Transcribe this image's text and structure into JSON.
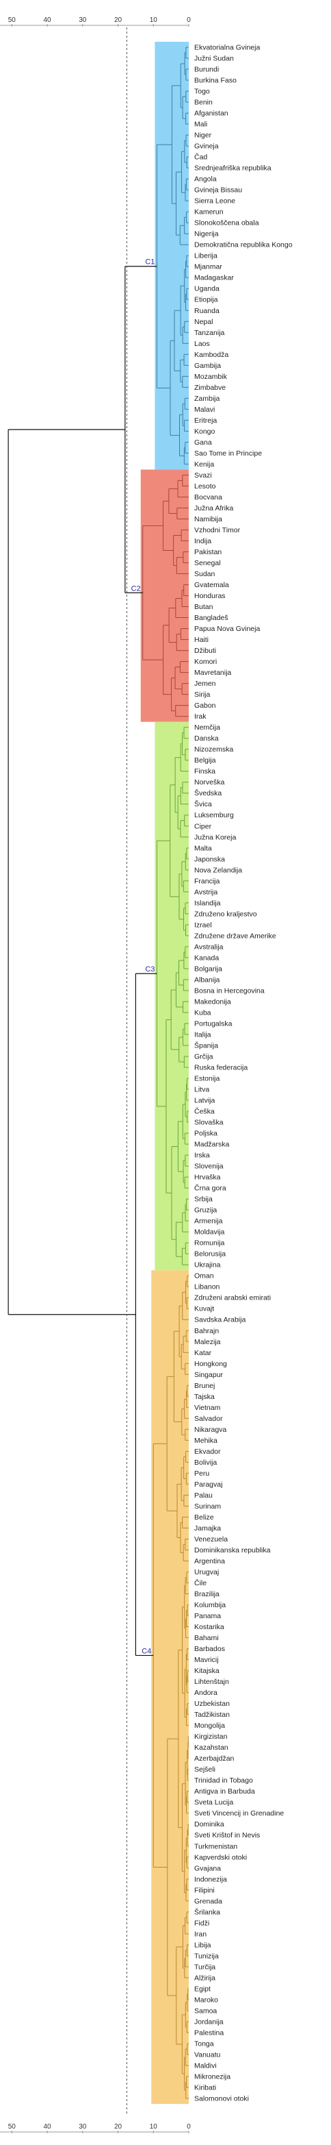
{
  "chart_data": {
    "type": "dendrogram",
    "orientation": "horizontal",
    "title": "",
    "xlabel": "",
    "ylabel": "",
    "xlim": [
      55,
      0
    ],
    "axis_ticks": [
      50,
      40,
      30,
      20,
      10,
      0
    ],
    "cut_line": 17.5,
    "root_height": 51,
    "clusters": [
      {
        "label": "C1",
        "color": "#8fd4f6",
        "stroke": "#3b7fa6",
        "sub_height": 9,
        "leaves": [
          "Ekvatorialna Gvineja",
          "Južni Sudan",
          "Burundi",
          "Burkina Faso",
          "Togo",
          "Benin",
          "Afganistan",
          "Mali",
          "Niger",
          "Gvineja",
          "Čad",
          "Srednjeafriška republika",
          "Angola",
          "Gvineja Bissau",
          "Sierra Leone",
          "Kamerun",
          "Slonokoščena obala",
          "Nigerija",
          "Demokratična republika Kongo",
          "Liberija",
          "Mjanmar",
          "Madagaskar",
          "Uganda",
          "Etiopija",
          "Ruanda",
          "Nepal",
          "Tanzanija",
          "Laos",
          "Kambodža",
          "Gambija",
          "Mozambik",
          "Zimbabve",
          "Zambija",
          "Malavi",
          "Eritreja",
          "Kongo",
          "Gana",
          "Sao Tome in Principe",
          "Kenija"
        ]
      },
      {
        "label": "C2",
        "color": "#ef8a7b",
        "stroke": "#a8453a",
        "sub_height": 13,
        "leaves": [
          "Svazi",
          "Lesoto",
          "Bocvana",
          "Južna Afrika",
          "Namibija",
          "Vzhodni Timor",
          "Indija",
          "Pakistan",
          "Senegal",
          "Sudan",
          "Gvatemala",
          "Honduras",
          "Butan",
          "Bangladeš",
          "Papua Nova Gvineja",
          "Haiti",
          "Džibuti",
          "Komori",
          "Mavretanija",
          "Jemen",
          "Sirija",
          "Gabon",
          "Irak"
        ]
      },
      {
        "label": "C3",
        "color": "#c8ef8a",
        "stroke": "#6fa43a",
        "sub_height": 9,
        "leaves": [
          "Nemčija",
          "Danska",
          "Nizozemska",
          "Belgija",
          "Finska",
          "Norveška",
          "Švedska",
          "Švica",
          "Luksemburg",
          "Ciper",
          "Južna Koreja",
          "Malta",
          "Japonska",
          "Nova Zelandija",
          "Francija",
          "Avstrija",
          "Islandija",
          "Združeno kraljestvo",
          "Izrael",
          "Združene države Amerike",
          "Avstralija",
          "Kanada",
          "Bolgarija",
          "Albanija",
          "Bosna in Hercegovina",
          "Makedonija",
          "Kuba",
          "Portugalska",
          "Italija",
          "Španija",
          "Grčija",
          "Ruska federacija",
          "Estonija",
          "Litva",
          "Latvija",
          "Češka",
          "Slovaška",
          "Poljska",
          "Madžarska",
          "Irska",
          "Slovenija",
          "Hrvaška",
          "Črna gora",
          "Srbija",
          "Gruzija",
          "Armenija",
          "Moldavija",
          "Romunija",
          "Belorusija",
          "Ukrajina"
        ]
      },
      {
        "label": "C4",
        "color": "#f8d083",
        "stroke": "#b68a32",
        "sub_height": 10,
        "leaves": [
          "Oman",
          "Libanon",
          "Združeni arabski emirati",
          "Kuvajt",
          "Savdska Arabija",
          "Bahrajn",
          "Malezija",
          "Katar",
          "Hongkong",
          "Singapur",
          "Brunej",
          "Tajska",
          "Vietnam",
          "Salvador",
          "Nikaragva",
          "Mehika",
          "Ekvador",
          "Bolivija",
          "Peru",
          "Paragvaj",
          "Palau",
          "Surinam",
          "Belize",
          "Jamajka",
          "Venezuela",
          "Dominikanska republika",
          "Argentina",
          "Urugvaj",
          "Čile",
          "Brazilija",
          "Kolumbija",
          "Panama",
          "Kostarika",
          "Bahami",
          "Barbados",
          "Mavricij",
          "Kitajska",
          "Lihtenštajn",
          "Andora",
          "Uzbekistan",
          "Tadžikistan",
          "Mongolija",
          "Kirgizistan",
          "Kazahstan",
          "Azerbajdžan",
          "Sejšeli",
          "Trinidad in Tobago",
          "Antigva in Barbuda",
          "Sveta Lucija",
          "Sveti Vincencij in Grenadine",
          "Dominika",
          "Sveti Krištof in Nevis",
          "Turkmenistan",
          "Kapverdski otoki",
          "Gvajana",
          "Indonezija",
          "Filipini",
          "Grenada",
          "Šrilanka",
          "Fidži",
          "Iran",
          "Libija",
          "Tunizija",
          "Turčija",
          "Alžirija",
          "Egipt",
          "Maroko",
          "Samoa",
          "Jordanija",
          "Palestina",
          "Tonga",
          "Vanuatu",
          "Maldivi",
          "Mikronezija",
          "Kiribati",
          "Salomonovi otoki"
        ]
      }
    ],
    "merges": [
      {
        "join": [
          "C1",
          "C2"
        ],
        "height": 18
      },
      {
        "join": [
          "C3",
          "C4"
        ],
        "height": 15
      },
      {
        "join": [
          "C1+C2",
          "C3+C4"
        ],
        "height": 51
      }
    ]
  }
}
